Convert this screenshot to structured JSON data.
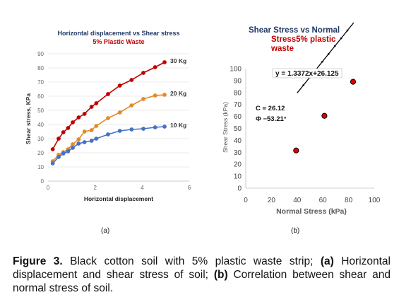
{
  "chart_data": [
    {
      "type": "line",
      "title": "Horizontal displacement vs Shear stress",
      "subtitle": "5% Plastic Waste",
      "xlabel": "Horizontal displacement",
      "ylabel": "Shear stress, KPa",
      "xlim": [
        0,
        6
      ],
      "ylim": [
        0,
        90
      ],
      "xticks": [
        "0",
        "2",
        "4",
        "6"
      ],
      "yticks": [
        "0",
        "10",
        "20",
        "30",
        "40",
        "50",
        "60",
        "70",
        "80",
        "90"
      ],
      "grid": true,
      "series": [
        {
          "name": "30 Kg",
          "color": "#c00000",
          "x": [
            0.2,
            0.45,
            0.65,
            0.85,
            1.05,
            1.3,
            1.55,
            1.85,
            2.05,
            2.55,
            3.05,
            3.55,
            4.05,
            4.55,
            4.95
          ],
          "y": [
            22.5,
            30,
            34.5,
            37.5,
            41.5,
            45,
            47.5,
            52.5,
            55,
            61.5,
            67.5,
            71.5,
            76.5,
            80.5,
            84
          ]
        },
        {
          "name": "20 Kg",
          "color": "#e28a2b",
          "x": [
            0.2,
            0.45,
            0.65,
            0.85,
            1.05,
            1.3,
            1.55,
            1.85,
            2.05,
            2.55,
            3.05,
            3.55,
            4.05,
            4.55,
            4.95
          ],
          "y": [
            14,
            18.5,
            20.5,
            22.5,
            26,
            29.5,
            35,
            36,
            39,
            44.5,
            48.5,
            53.5,
            58,
            60.5,
            61
          ]
        },
        {
          "name": "10 Kg",
          "color": "#4472c4",
          "x": [
            0.2,
            0.45,
            0.65,
            0.85,
            1.05,
            1.3,
            1.55,
            1.85,
            2.05,
            2.55,
            3.05,
            3.55,
            4.05,
            4.55,
            4.95
          ],
          "y": [
            12.5,
            17,
            19.5,
            21,
            23.5,
            26.5,
            27.5,
            28.5,
            30,
            33,
            35.5,
            36.5,
            37,
            38,
            38.5
          ]
        }
      ]
    },
    {
      "type": "scatter",
      "title": "Shear Stress vs Normal Stress5% plastic waste",
      "title_lines": [
        "Shear Stress vs Normal",
        "Stress5% plastic",
        "waste"
      ],
      "xlabel": "Normal Stress (kPa)",
      "ylabel": "Shear Stress (kPa)",
      "xlim": [
        0,
        100
      ],
      "ylim": [
        0,
        100
      ],
      "xticks": [
        "0",
        "20",
        "40",
        "60",
        "80",
        "100"
      ],
      "yticks": [
        "0",
        "10",
        "20",
        "30",
        "40",
        "50",
        "60",
        "70",
        "80",
        "90",
        "100"
      ],
      "grid": false,
      "equation": "y = 1.3372x+26.125",
      "annotations": [
        "C = 26.12",
        "Φ −53.21°"
      ],
      "points": {
        "x": [
          39.2,
          61.2,
          83.5
        ],
        "y": [
          31.5,
          60.5,
          89
        ]
      },
      "fit": {
        "slope": 1.3372,
        "intercept": 26.125,
        "xrange": [
          40,
          84
        ],
        "color": "#000000"
      }
    }
  ],
  "panel_labels": {
    "a": "(a)",
    "b": "(b)"
  },
  "caption": {
    "label": "Figure 3.",
    "part1": " Black cotton soil with 5% plastic waste strip; ",
    "a": "(a)",
    "part2": " Horizontal displacement and shear stress of soil; ",
    "b": "(b)",
    "part3": " Correlation between shear and normal stress of soil."
  }
}
